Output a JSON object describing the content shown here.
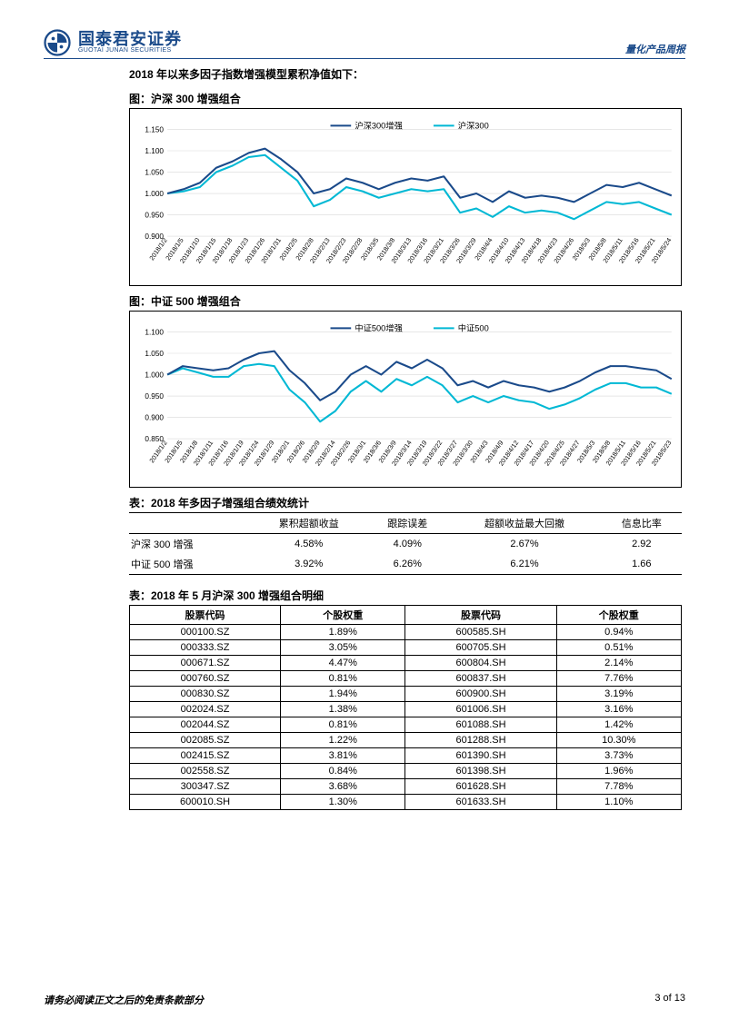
{
  "header": {
    "logo_cn": "国泰君安证券",
    "logo_en": "GUOTAI JUNAN SECURITIES",
    "right": "量化产品周报"
  },
  "intro": "2018 年以来多因子指数增强模型累积净值如下：",
  "chart1": {
    "title": "图：沪深 300 增强组合",
    "type": "line",
    "legend": [
      "沪深300增强",
      "沪深300"
    ],
    "colors": [
      "#1a4a8a",
      "#00b8d4"
    ],
    "ylim": [
      0.9,
      1.15
    ],
    "yticks": [
      0.9,
      0.95,
      1.0,
      1.05,
      1.1,
      1.15
    ],
    "xlabels": [
      "2018/1/2",
      "2018/1/5",
      "2018/1/10",
      "2018/1/15",
      "2018/1/18",
      "2018/1/23",
      "2018/1/26",
      "2018/1/31",
      "2018/2/5",
      "2018/2/8",
      "2018/2/13",
      "2018/2/23",
      "2018/2/28",
      "2018/3/5",
      "2018/3/8",
      "2018/3/13",
      "2018/3/16",
      "2018/3/21",
      "2018/3/26",
      "2018/3/29",
      "2018/4/4",
      "2018/4/10",
      "2018/4/13",
      "2018/4/18",
      "2018/4/23",
      "2018/4/26",
      "2018/5/3",
      "2018/5/8",
      "2018/5/11",
      "2018/5/16",
      "2018/5/21",
      "2018/5/24"
    ],
    "series1": [
      1.0,
      1.01,
      1.025,
      1.06,
      1.075,
      1.095,
      1.105,
      1.08,
      1.05,
      1.0,
      1.01,
      1.035,
      1.025,
      1.01,
      1.025,
      1.035,
      1.03,
      1.04,
      0.99,
      1.0,
      0.98,
      1.005,
      0.99,
      0.995,
      0.99,
      0.98,
      1.0,
      1.02,
      1.015,
      1.025,
      1.01,
      0.995
    ],
    "series2": [
      1.0,
      1.005,
      1.015,
      1.05,
      1.065,
      1.085,
      1.09,
      1.06,
      1.03,
      0.97,
      0.985,
      1.015,
      1.005,
      0.99,
      1.0,
      1.01,
      1.005,
      1.01,
      0.955,
      0.965,
      0.945,
      0.97,
      0.955,
      0.96,
      0.955,
      0.94,
      0.96,
      0.98,
      0.975,
      0.98,
      0.965,
      0.95
    ],
    "line_width": 2,
    "bg": "#ffffff",
    "grid": "#d9d9d9",
    "label_fontsize": 7
  },
  "chart2": {
    "title": "图：中证 500 增强组合",
    "type": "line",
    "legend": [
      "中证500增强",
      "中证500"
    ],
    "colors": [
      "#1a4a8a",
      "#00b8d4"
    ],
    "ylim": [
      0.85,
      1.1
    ],
    "yticks": [
      0.85,
      0.9,
      0.95,
      1.0,
      1.05,
      1.1
    ],
    "xlabels": [
      "2018/1/2",
      "2018/1/5",
      "2018/1/8",
      "2018/1/11",
      "2018/1/16",
      "2018/1/19",
      "2018/1/24",
      "2018/1/29",
      "2018/2/1",
      "2018/2/6",
      "2018/2/9",
      "2018/2/14",
      "2018/2/26",
      "2018/3/1",
      "2018/3/6",
      "2018/3/9",
      "2018/3/14",
      "2018/3/19",
      "2018/3/22",
      "2018/3/27",
      "2018/3/30",
      "2018/4/3",
      "2018/4/9",
      "2018/4/12",
      "2018/4/17",
      "2018/4/20",
      "2018/4/25",
      "2018/4/27",
      "2018/5/3",
      "2018/5/8",
      "2018/5/11",
      "2018/5/16",
      "2018/5/21",
      "2018/5/23"
    ],
    "series1": [
      1.0,
      1.02,
      1.015,
      1.01,
      1.015,
      1.035,
      1.05,
      1.055,
      1.01,
      0.98,
      0.94,
      0.96,
      1.0,
      1.02,
      1.0,
      1.03,
      1.015,
      1.035,
      1.015,
      0.975,
      0.985,
      0.97,
      0.985,
      0.975,
      0.97,
      0.96,
      0.97,
      0.985,
      1.005,
      1.02,
      1.02,
      1.015,
      1.01,
      0.99
    ],
    "series2": [
      1.0,
      1.015,
      1.005,
      0.995,
      0.995,
      1.02,
      1.025,
      1.02,
      0.965,
      0.935,
      0.89,
      0.915,
      0.96,
      0.985,
      0.96,
      0.99,
      0.975,
      0.995,
      0.975,
      0.935,
      0.95,
      0.935,
      0.95,
      0.94,
      0.935,
      0.92,
      0.93,
      0.945,
      0.965,
      0.98,
      0.98,
      0.97,
      0.97,
      0.955
    ],
    "line_width": 2,
    "bg": "#ffffff",
    "grid": "#d9d9d9",
    "label_fontsize": 7
  },
  "stats": {
    "title": "表：2018 年多因子增强组合绩效统计",
    "columns": [
      "",
      "累积超额收益",
      "跟踪误差",
      "超额收益最大回撤",
      "信息比率"
    ],
    "rows": [
      [
        "沪深 300 增强",
        "4.58%",
        "4.09%",
        "2.67%",
        "2.92"
      ],
      [
        "中证 500 增强",
        "3.92%",
        "6.26%",
        "6.21%",
        "1.66"
      ]
    ]
  },
  "detail": {
    "title": "表：2018 年 5 月沪深 300 增强组合明细",
    "columns": [
      "股票代码",
      "个股权重",
      "股票代码",
      "个股权重"
    ],
    "rows": [
      [
        "000100.SZ",
        "1.89%",
        "600585.SH",
        "0.94%"
      ],
      [
        "000333.SZ",
        "3.05%",
        "600705.SH",
        "0.51%"
      ],
      [
        "000671.SZ",
        "4.47%",
        "600804.SH",
        "2.14%"
      ],
      [
        "000760.SZ",
        "0.81%",
        "600837.SH",
        "7.76%"
      ],
      [
        "000830.SZ",
        "1.94%",
        "600900.SH",
        "3.19%"
      ],
      [
        "002024.SZ",
        "1.38%",
        "601006.SH",
        "3.16%"
      ],
      [
        "002044.SZ",
        "0.81%",
        "601088.SH",
        "1.42%"
      ],
      [
        "002085.SZ",
        "1.22%",
        "601288.SH",
        "10.30%"
      ],
      [
        "002415.SZ",
        "3.81%",
        "601390.SH",
        "3.73%"
      ],
      [
        "002558.SZ",
        "0.84%",
        "601398.SH",
        "1.96%"
      ],
      [
        "300347.SZ",
        "3.68%",
        "601628.SH",
        "7.78%"
      ],
      [
        "600010.SH",
        "1.30%",
        "601633.SH",
        "1.10%"
      ]
    ]
  },
  "footer": {
    "left": "请务必阅读正文之后的免责条款部分",
    "right": "3 of 13"
  }
}
